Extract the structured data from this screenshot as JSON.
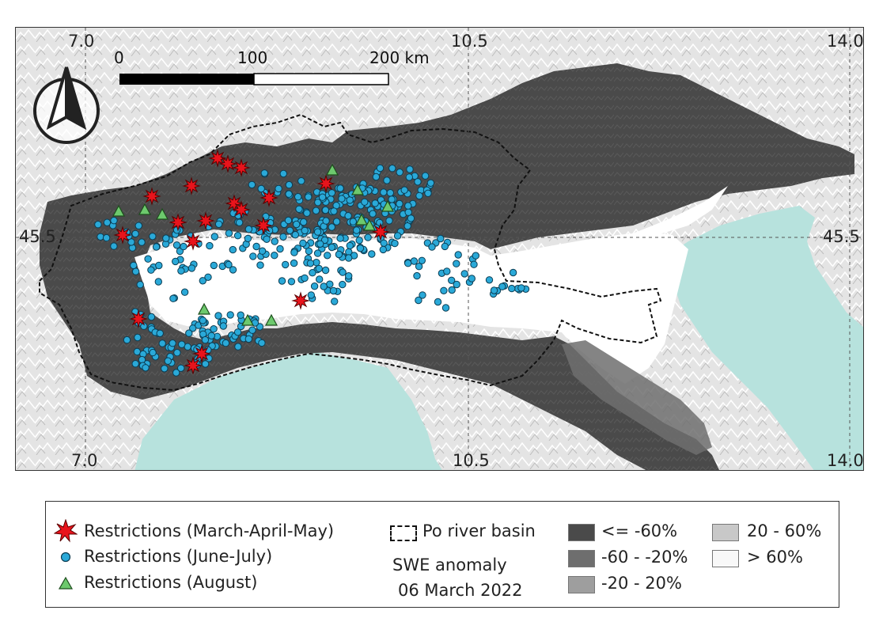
{
  "map": {
    "coords": {
      "lon_top_left": "7.0",
      "lon_top_mid": "10.5",
      "lon_top_right": "14.0",
      "lon_bottom_left": "7.0",
      "lon_bottom_mid": "10.5",
      "lon_bottom_right": "14.0",
      "lat_left": "45.5",
      "lat_right": "45.5"
    },
    "scale_bar": {
      "label_0": "0",
      "label_100": "100",
      "label_200": "200 km"
    },
    "north_arrow_icon": "north-arrow-icon",
    "colors": {
      "anomaly_le_m60": "#4a4a4a",
      "anomaly_m60_m20": "#6e6e6e",
      "anomaly_m20_20": "#9e9e9e",
      "anomaly_20_60": "#c8c8c8",
      "anomaly_gt_60": "#ffffff",
      "sea": "#b7e2dd",
      "stations_june_july": "#2aa9d8",
      "stations_august": "#6dc96d",
      "stations_mam": "#e8141c"
    }
  },
  "legend": {
    "restrictions_mam": "Restrictions (March-April-May)",
    "restrictions_june_july": "Restrictions (June-July)",
    "restrictions_august": "Restrictions (August)",
    "po_basin": "Po river basin",
    "swe_title_1": "SWE anomaly",
    "swe_title_2": "06 March 2022",
    "class_1": "<= -60%",
    "class_2": "-60 - -20%",
    "class_3": "-20 - 20%",
    "class_4": "20 - 60%",
    "class_5": "> 60%"
  }
}
